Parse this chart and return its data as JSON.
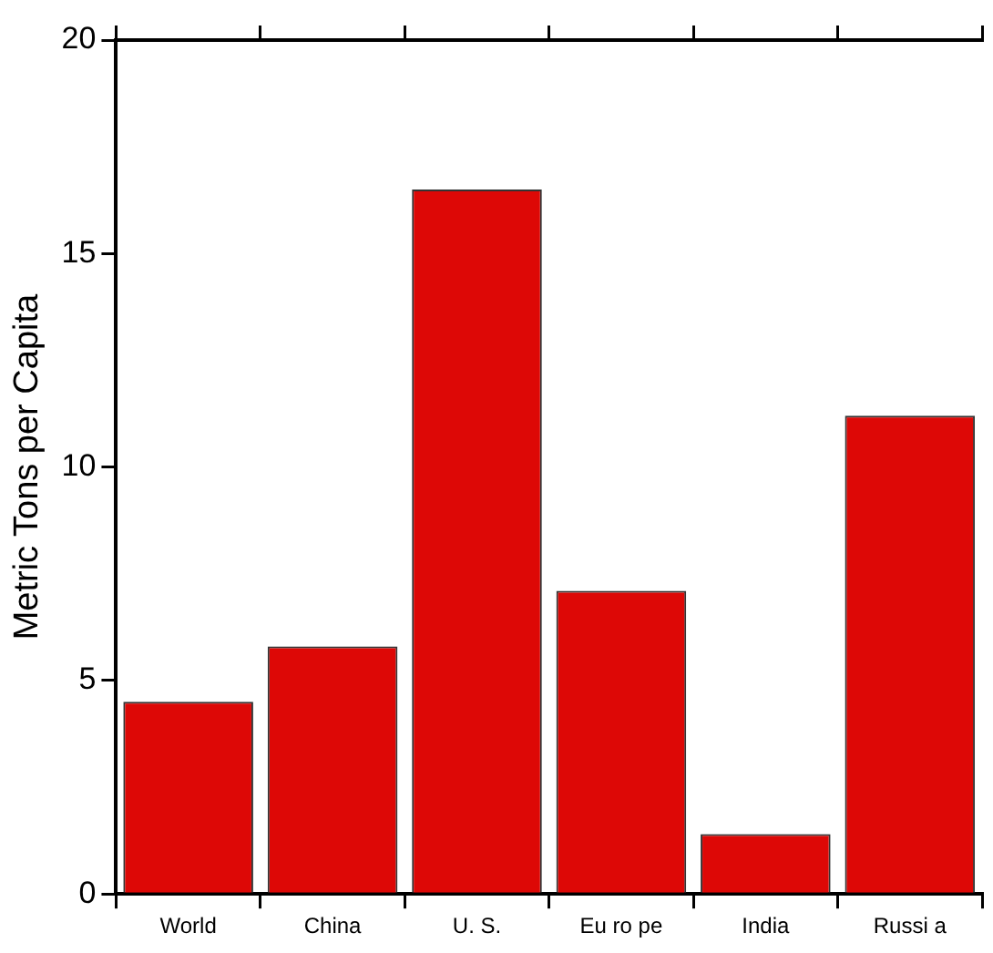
{
  "chart_data": {
    "type": "bar",
    "ylabel": "Metric Tons per Capita",
    "categories": [
      "World",
      "China",
      "U. S.",
      "Eu ro pe",
      "India",
      "Russi a"
    ],
    "values": [
      4.5,
      5.8,
      16.5,
      7.1,
      1.4,
      11.2
    ],
    "color": "#dd0806",
    "ylim": [
      0,
      20
    ],
    "yticks": [
      0,
      5,
      10,
      15,
      20
    ]
  }
}
